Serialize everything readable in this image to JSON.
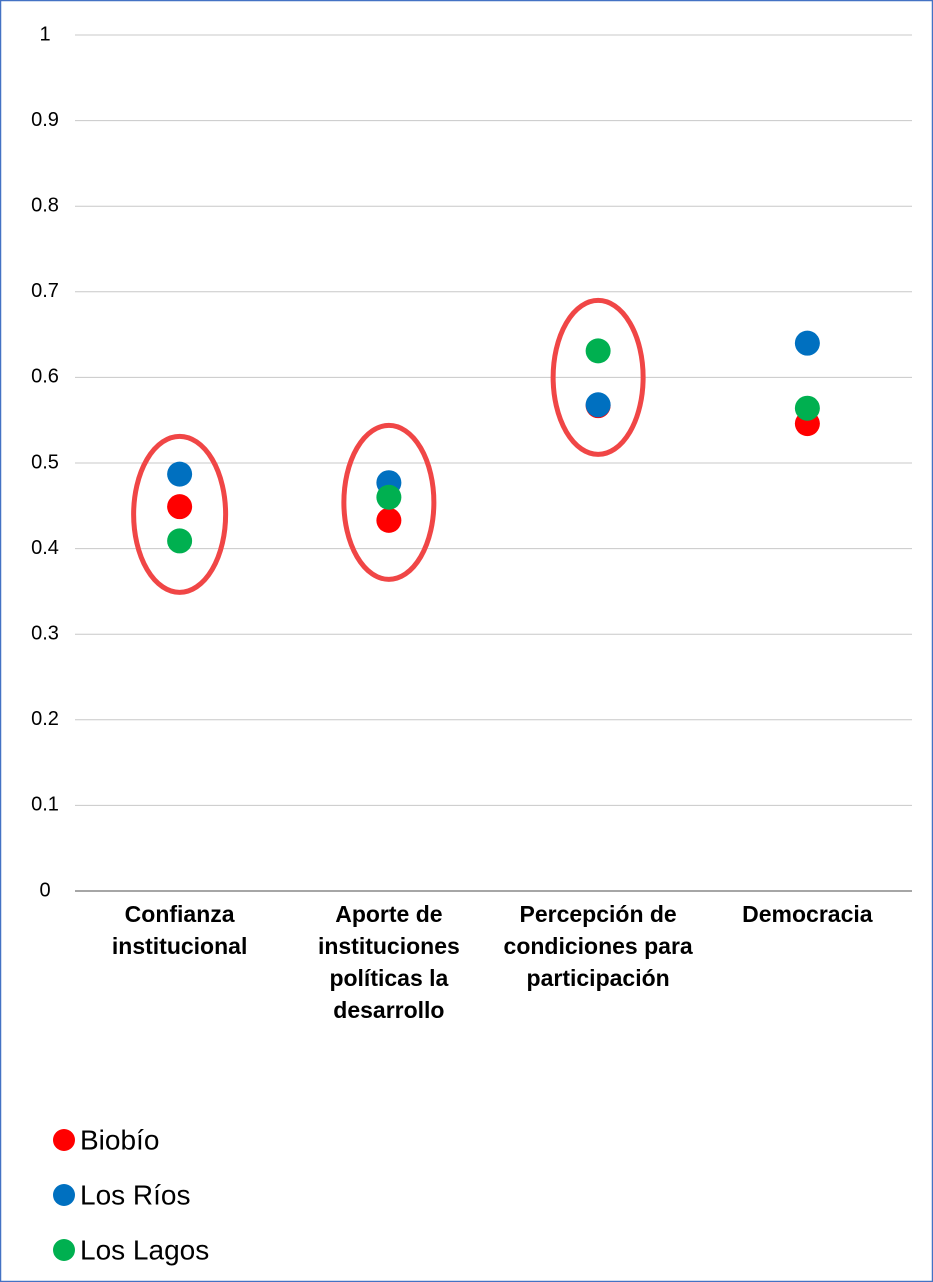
{
  "chart_data": {
    "type": "dot",
    "categories": [
      "Confianza institucional",
      "Aporte de instituciones políticas la desarrollo",
      "Percepción de condiciones para participación",
      "Democracia"
    ],
    "series": [
      {
        "name": "Biobío",
        "color": "#ff0000",
        "values": [
          0.449,
          0.433,
          0.567,
          0.546
        ]
      },
      {
        "name": "Los Ríos",
        "color": "#0070c0",
        "values": [
          0.487,
          0.477,
          0.568,
          0.64
        ]
      },
      {
        "name": "Los Lagos",
        "color": "#00b050",
        "values": [
          0.409,
          0.46,
          0.631,
          0.564
        ]
      }
    ],
    "ylim": [
      0,
      1
    ],
    "yticks": [
      0,
      0.1,
      0.2,
      0.3,
      0.4,
      0.5,
      0.6,
      0.7,
      0.8,
      0.9,
      1
    ],
    "grid": true,
    "legend": "bottom-left"
  }
}
